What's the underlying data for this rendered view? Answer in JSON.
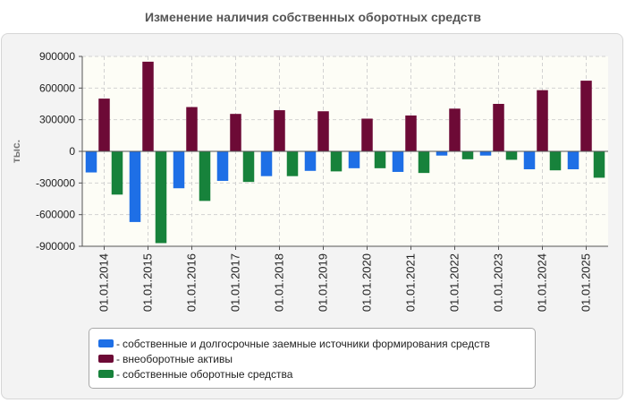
{
  "chart_data": {
    "type": "bar",
    "title": "Изменение наличия собственных оборотных средств",
    "xlabel": "",
    "ylabel": "тыс.",
    "ylim": [
      -900000,
      900000
    ],
    "yticks": [
      900000,
      600000,
      300000,
      0,
      -300000,
      -600000,
      -900000
    ],
    "ytick_labels": [
      "900000",
      "600000",
      "300000",
      "0",
      "-300000",
      "-600000",
      "-900000"
    ],
    "grid": true,
    "legend_position": "bottom",
    "categories": [
      "01.01.2014",
      "01.01.2015",
      "01.01.2016",
      "01.01.2017",
      "01.01.2018",
      "01.01.2019",
      "01.01.2020",
      "01.01.2021",
      "01.01.2022",
      "01.01.2023",
      "01.01.2024",
      "01.01.2025"
    ],
    "series": [
      {
        "name": "собственные и долгосрочные заемные источники формирования средств",
        "color": "#1e6fe6",
        "values": [
          -200000,
          -670000,
          -350000,
          -280000,
          -235000,
          -185000,
          -160000,
          -195000,
          -40000,
          -40000,
          -170000,
          -170000
        ]
      },
      {
        "name": "внеоборотные активы",
        "color": "#6d0a36",
        "values": [
          500000,
          850000,
          420000,
          355000,
          390000,
          380000,
          310000,
          340000,
          405000,
          450000,
          580000,
          670000
        ]
      },
      {
        "name": "собственные оборотные средства",
        "color": "#17823b",
        "values": [
          -410000,
          -870000,
          -470000,
          -290000,
          -235000,
          -190000,
          -160000,
          -205000,
          -75000,
          -80000,
          -180000,
          -250000
        ]
      }
    ]
  }
}
